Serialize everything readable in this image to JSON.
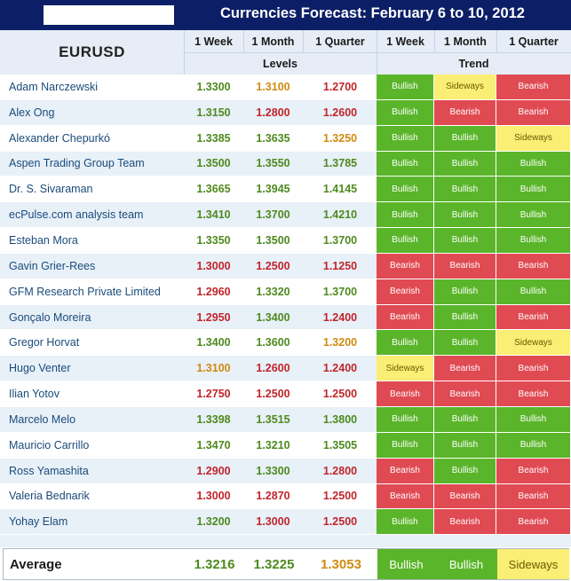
{
  "title": "Currencies Forecast: February 6 to 10, 2012",
  "pair": "EURUSD",
  "columns": [
    "1 Week",
    "1 Month",
    "1 Quarter",
    "1 Week",
    "1 Month",
    "1 Quarter"
  ],
  "groups": {
    "levels": "Levels",
    "trend": "Trend"
  },
  "colors": {
    "header_bg": "#0c1f66",
    "bullish": "#5ab52a",
    "bearish": "#e04a52",
    "sideways": "#fbee74"
  },
  "rows": [
    {
      "name": "Adam Narczewski",
      "levels": [
        "1.3300",
        "1.3100",
        "1.2700"
      ],
      "trend": [
        "Bullish",
        "Sideways",
        "Bearish"
      ]
    },
    {
      "name": "Alex Ong",
      "levels": [
        "1.3150",
        "1.2800",
        "1.2600"
      ],
      "trend": [
        "Bullish",
        "Bearish",
        "Bearish"
      ]
    },
    {
      "name": "Alexander Chepurkó",
      "levels": [
        "1.3385",
        "1.3635",
        "1.3250"
      ],
      "trend": [
        "Bullish",
        "Bullish",
        "Sideways"
      ]
    },
    {
      "name": "Aspen Trading Group Team",
      "levels": [
        "1.3500",
        "1.3550",
        "1.3785"
      ],
      "trend": [
        "Bullish",
        "Bullish",
        "Bullish"
      ]
    },
    {
      "name": "Dr. S. Sivaraman",
      "levels": [
        "1.3665",
        "1.3945",
        "1.4145"
      ],
      "trend": [
        "Bullish",
        "Bullish",
        "Bullish"
      ]
    },
    {
      "name": "ecPulse.com analysis team",
      "levels": [
        "1.3410",
        "1.3700",
        "1.4210"
      ],
      "trend": [
        "Bullish",
        "Bullish",
        "Bullish"
      ]
    },
    {
      "name": "Esteban Mora",
      "levels": [
        "1.3350",
        "1.3500",
        "1.3700"
      ],
      "trend": [
        "Bullish",
        "Bullish",
        "Bullish"
      ]
    },
    {
      "name": "Gavin Grier-Rees",
      "levels": [
        "1.3000",
        "1.2500",
        "1.1250"
      ],
      "trend": [
        "Bearish",
        "Bearish",
        "Bearish"
      ]
    },
    {
      "name": "GFM Research Private Limited",
      "levels": [
        "1.2960",
        "1.3320",
        "1.3700"
      ],
      "trend": [
        "Bearish",
        "Bullish",
        "Bullish"
      ]
    },
    {
      "name": "Gonçalo Moreira",
      "levels": [
        "1.2950",
        "1.3400",
        "1.2400"
      ],
      "trend": [
        "Bearish",
        "Bullish",
        "Bearish"
      ]
    },
    {
      "name": "Gregor Horvat",
      "levels": [
        "1.3400",
        "1.3600",
        "1.3200"
      ],
      "trend": [
        "Bullish",
        "Bullish",
        "Sideways"
      ]
    },
    {
      "name": "Hugo Venter",
      "levels": [
        "1.3100",
        "1.2600",
        "1.2400"
      ],
      "trend": [
        "Sideways",
        "Bearish",
        "Bearish"
      ]
    },
    {
      "name": "Ilian Yotov",
      "levels": [
        "1.2750",
        "1.2500",
        "1.2500"
      ],
      "trend": [
        "Bearish",
        "Bearish",
        "Bearish"
      ]
    },
    {
      "name": "Marcelo Melo",
      "levels": [
        "1.3398",
        "1.3515",
        "1.3800"
      ],
      "trend": [
        "Bullish",
        "Bullish",
        "Bullish"
      ]
    },
    {
      "name": "Mauricio Carrillo",
      "levels": [
        "1.3470",
        "1.3210",
        "1.3505"
      ],
      "trend": [
        "Bullish",
        "Bullish",
        "Bullish"
      ]
    },
    {
      "name": "Ross Yamashita",
      "levels": [
        "1.2900",
        "1.3300",
        "1.2800"
      ],
      "trend": [
        "Bearish",
        "Bullish",
        "Bearish"
      ]
    },
    {
      "name": "Valeria Bednarik",
      "levels": [
        "1.3000",
        "1.2870",
        "1.2500"
      ],
      "trend": [
        "Bearish",
        "Bearish",
        "Bearish"
      ]
    },
    {
      "name": "Yohay Elam",
      "levels": [
        "1.3200",
        "1.3000",
        "1.2500"
      ],
      "trend": [
        "Bullish",
        "Bearish",
        "Bearish"
      ]
    }
  ],
  "average": {
    "label": "Average",
    "levels": [
      "1.3216",
      "1.3225",
      "1.3053"
    ],
    "trend": [
      "Bullish",
      "Bullish",
      "Sideways"
    ]
  }
}
